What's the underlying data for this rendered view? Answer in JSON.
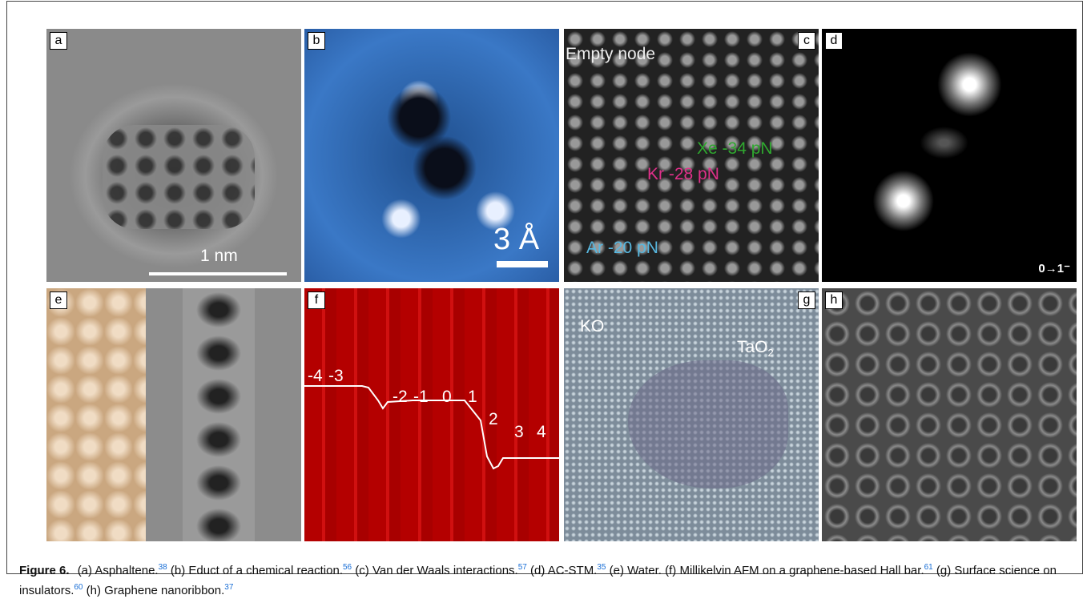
{
  "figure": {
    "panels": [
      {
        "label": "a",
        "annotations": [
          "1 nm"
        ]
      },
      {
        "label": "b",
        "annotations": [
          "3 Å"
        ]
      },
      {
        "label": "c",
        "annotations": [
          "Empty node",
          "Kr -28 pN",
          "Xe -34 pN",
          "Ar -20 pN"
        ]
      },
      {
        "label": "d",
        "annotations": [
          "0→1⁻"
        ]
      },
      {
        "label": "e"
      },
      {
        "label": "f",
        "annotations": [
          "-4",
          "-3",
          "-2",
          "-1",
          "0",
          "1",
          "2",
          "3",
          "4"
        ]
      },
      {
        "label": "g",
        "annotations": [
          "KO",
          {
            "text": "TaO",
            "sub": "2"
          }
        ]
      },
      {
        "label": "h"
      }
    ],
    "caption": {
      "label": "Figure 6.",
      "parts": [
        {
          "text": "(a) Asphaltene.",
          "ref": "38"
        },
        {
          "text": "(b) Educt of a chemical reaction.",
          "ref": "56"
        },
        {
          "text": "(c) Van der Waals interactions.",
          "ref": "57"
        },
        {
          "text": "(d) AC-STM.",
          "ref": "35"
        },
        {
          "text": "(e) Water."
        },
        {
          "text": "(f) Millikelvin AFM on a graphene-based Hall bar.",
          "ref": "61"
        },
        {
          "text": "(g) Surface science on insulators.",
          "ref": "60"
        },
        {
          "text": "(h) Graphene nanoribbon.",
          "ref": "37"
        }
      ]
    }
  }
}
